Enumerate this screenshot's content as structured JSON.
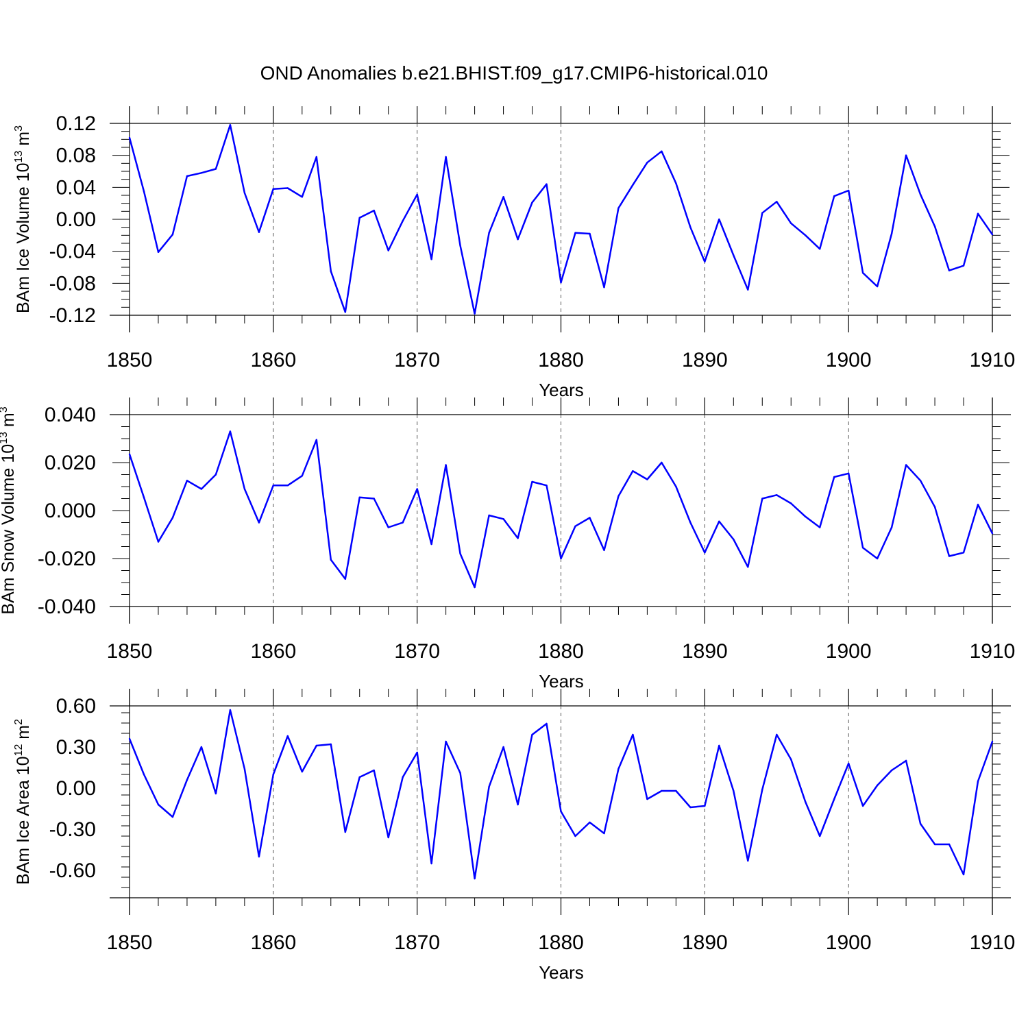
{
  "title": "OND Anomalies b.e21.BHIST.f09_g17.CMIP6-historical.010",
  "colors": {
    "line": "#0000ff",
    "axis": "#000000"
  },
  "chart_data": [
    {
      "type": "line",
      "ylabel_main": "BAm Ice Volume 10",
      "ylabel_exp": "13",
      "ylabel_unit": " m",
      "ylabel_unit_exp": "3",
      "xlabel": "Years",
      "xlim": [
        1850,
        1910
      ],
      "ylim": [
        -0.12,
        0.12
      ],
      "yticks": [
        -0.12,
        -0.08,
        -0.04,
        0.0,
        0.04,
        0.08,
        0.12
      ],
      "ytick_labels": [
        "-0.12",
        "-0.08",
        "-0.04",
        "0.00",
        "0.04",
        "0.08",
        "0.12"
      ],
      "xticks": [
        1850,
        1860,
        1870,
        1880,
        1890,
        1900,
        1910
      ],
      "xtick_labels": [
        "1850",
        "1860",
        "1870",
        "1880",
        "1890",
        "1900",
        "1910"
      ],
      "grid_x": true,
      "x": [
        1850,
        1851,
        1852,
        1853,
        1854,
        1855,
        1856,
        1857,
        1858,
        1859,
        1860,
        1861,
        1862,
        1863,
        1864,
        1865,
        1866,
        1867,
        1868,
        1869,
        1870,
        1871,
        1872,
        1873,
        1874,
        1875,
        1876,
        1877,
        1878,
        1879,
        1880,
        1881,
        1882,
        1883,
        1884,
        1885,
        1886,
        1887,
        1888,
        1889,
        1890,
        1891,
        1892,
        1893,
        1894,
        1895,
        1896,
        1897,
        1898,
        1899,
        1900,
        1901,
        1902,
        1903,
        1904,
        1905,
        1906,
        1907,
        1908,
        1909,
        1910
      ],
      "y": [
        0.102,
        0.035,
        -0.041,
        -0.019,
        0.054,
        0.058,
        0.063,
        0.118,
        0.033,
        -0.016,
        0.038,
        0.039,
        0.028,
        0.078,
        -0.065,
        -0.116,
        0.002,
        0.011,
        -0.039,
        -0.002,
        0.031,
        -0.05,
        0.078,
        -0.033,
        -0.118,
        -0.017,
        0.028,
        -0.025,
        0.021,
        0.044,
        -0.079,
        -0.017,
        -0.018,
        -0.085,
        0.014,
        0.043,
        0.071,
        0.085,
        0.045,
        -0.01,
        -0.053,
        0.0,
        -0.045,
        -0.088,
        0.008,
        0.022,
        -0.005,
        -0.02,
        -0.037,
        0.029,
        0.036,
        -0.067,
        -0.084,
        -0.018,
        0.08,
        0.031,
        -0.009,
        -0.064,
        -0.058,
        0.007,
        -0.019
      ]
    },
    {
      "type": "line",
      "ylabel_main": "BAm Snow Volume 10",
      "ylabel_exp": "13",
      "ylabel_unit": " m",
      "ylabel_unit_exp": "3",
      "xlabel": "Years",
      "xlim": [
        1850,
        1910
      ],
      "ylim": [
        -0.04,
        0.04
      ],
      "yticks": [
        -0.04,
        -0.02,
        0.0,
        0.02,
        0.04
      ],
      "ytick_labels": [
        "-0.040",
        "-0.020",
        "0.000",
        "0.020",
        "0.040"
      ],
      "xticks": [
        1850,
        1860,
        1870,
        1880,
        1890,
        1900,
        1910
      ],
      "xtick_labels": [
        "1850",
        "1860",
        "1870",
        "1880",
        "1890",
        "1900",
        "1910"
      ],
      "grid_x": true,
      "x": [
        1850,
        1851,
        1852,
        1853,
        1854,
        1855,
        1856,
        1857,
        1858,
        1859,
        1860,
        1861,
        1862,
        1863,
        1864,
        1865,
        1866,
        1867,
        1868,
        1869,
        1870,
        1871,
        1872,
        1873,
        1874,
        1875,
        1876,
        1877,
        1878,
        1879,
        1880,
        1881,
        1882,
        1883,
        1884,
        1885,
        1886,
        1887,
        1888,
        1889,
        1890,
        1891,
        1892,
        1893,
        1894,
        1895,
        1896,
        1897,
        1898,
        1899,
        1900,
        1901,
        1902,
        1903,
        1904,
        1905,
        1906,
        1907,
        1908,
        1909,
        1910
      ],
      "y": [
        0.0235,
        0.0055,
        -0.013,
        -0.003,
        0.0125,
        0.009,
        0.015,
        0.033,
        0.009,
        -0.005,
        0.0105,
        0.0105,
        0.0145,
        0.0295,
        -0.0205,
        -0.0285,
        0.0055,
        0.005,
        -0.007,
        -0.005,
        0.009,
        -0.014,
        0.019,
        -0.018,
        -0.032,
        -0.002,
        -0.0035,
        -0.0115,
        0.012,
        0.0105,
        -0.02,
        -0.0065,
        -0.003,
        -0.0165,
        0.006,
        0.0165,
        0.013,
        0.02,
        0.01,
        -0.005,
        -0.0175,
        -0.0045,
        -0.012,
        -0.0235,
        0.005,
        0.0065,
        0.003,
        -0.0025,
        -0.007,
        0.014,
        0.0155,
        -0.0155,
        -0.02,
        -0.007,
        0.019,
        0.0125,
        0.0015,
        -0.019,
        -0.0175,
        0.0025,
        -0.0095
      ]
    },
    {
      "type": "line",
      "ylabel_main": "BAm Ice Area 10",
      "ylabel_exp": "12",
      "ylabel_unit": " m",
      "ylabel_unit_exp": "2",
      "xlabel": "Years",
      "xlim": [
        1850,
        1910
      ],
      "ylim": [
        -0.8,
        0.6
      ],
      "yticks": [
        -0.6,
        -0.3,
        0.0,
        0.3,
        0.6
      ],
      "ytick_labels": [
        "-0.60",
        "-0.30",
        "0.00",
        "0.30",
        "0.60"
      ],
      "xticks": [
        1850,
        1860,
        1870,
        1880,
        1890,
        1900,
        1910
      ],
      "xtick_labels": [
        "1850",
        "1860",
        "1870",
        "1880",
        "1890",
        "1900",
        "1910"
      ],
      "grid_x": true,
      "x": [
        1850,
        1851,
        1852,
        1853,
        1854,
        1855,
        1856,
        1857,
        1858,
        1859,
        1860,
        1861,
        1862,
        1863,
        1864,
        1865,
        1866,
        1867,
        1868,
        1869,
        1870,
        1871,
        1872,
        1873,
        1874,
        1875,
        1876,
        1877,
        1878,
        1879,
        1880,
        1881,
        1882,
        1883,
        1884,
        1885,
        1886,
        1887,
        1888,
        1889,
        1890,
        1891,
        1892,
        1893,
        1894,
        1895,
        1896,
        1897,
        1898,
        1899,
        1900,
        1901,
        1902,
        1903,
        1904,
        1905,
        1906,
        1907,
        1908,
        1909,
        1910
      ],
      "y": [
        0.36,
        0.1,
        -0.12,
        -0.21,
        0.06,
        0.3,
        -0.04,
        0.57,
        0.14,
        -0.5,
        0.1,
        0.38,
        0.12,
        0.31,
        0.32,
        -0.32,
        0.08,
        0.13,
        -0.36,
        0.08,
        0.26,
        -0.55,
        0.34,
        0.11,
        -0.66,
        0.01,
        0.3,
        -0.12,
        0.39,
        0.47,
        -0.17,
        -0.35,
        -0.25,
        -0.33,
        0.14,
        0.39,
        -0.08,
        -0.02,
        -0.02,
        -0.14,
        -0.13,
        0.31,
        -0.02,
        -0.53,
        -0.01,
        0.39,
        0.21,
        -0.1,
        -0.35,
        -0.08,
        0.18,
        -0.13,
        0.02,
        0.13,
        0.2,
        -0.26,
        -0.41,
        -0.41,
        -0.63,
        0.05,
        0.34
      ]
    }
  ]
}
